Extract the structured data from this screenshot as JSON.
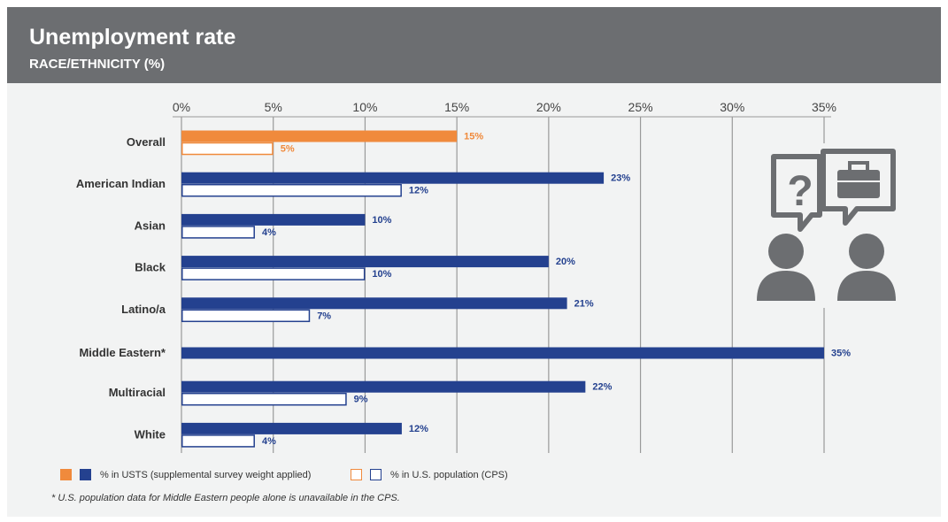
{
  "header": {
    "title": "Unemployment rate",
    "subtitle": "RACE/ETHNICITY (%)"
  },
  "legend": {
    "usts_label": "% in USTS (supplemental survey weight applied)",
    "cps_label": "% in U.S. population (CPS)"
  },
  "footnote": "* U.S. population data for Middle Eastern people alone is unavailable in the CPS.",
  "icon": "conversation-question-briefcase-icon",
  "colors": {
    "header_bg": "#6c6e71",
    "panel_bg": "#f2f3f3",
    "usts": "#24418f",
    "highlight": "#f08a3c",
    "grid": "#999999",
    "icon": "#6c6e71"
  },
  "chart_data": {
    "type": "bar",
    "orientation": "horizontal",
    "title": "Unemployment rate",
    "subtitle": "RACE/ETHNICITY (%)",
    "categories": [
      "Overall",
      "American Indian",
      "Asian",
      "Black",
      "Latino/a",
      "Middle Eastern*",
      "Multiracial",
      "White"
    ],
    "series": [
      {
        "name": "% in USTS (supplemental survey weight applied)",
        "values": [
          15,
          23,
          10,
          20,
          21,
          35,
          22,
          12
        ],
        "labels": [
          "15%",
          "23%",
          "10%",
          "20%",
          "21%",
          "35%",
          "22%",
          "12%"
        ]
      },
      {
        "name": "% in U.S. population (CPS)",
        "values": [
          5,
          12,
          4,
          10,
          7,
          null,
          9,
          4
        ],
        "labels": [
          "5%",
          "12%",
          "4%",
          "10%",
          "7%",
          null,
          "9%",
          "4%"
        ]
      }
    ],
    "xlim": [
      0,
      35
    ],
    "xticks": [
      "0%",
      "5%",
      "10%",
      "15%",
      "20%",
      "25%",
      "30%",
      "35%"
    ],
    "xtick_values": [
      0,
      5,
      10,
      15,
      20,
      25,
      30,
      35
    ],
    "highlight_category": "Overall",
    "grid": true,
    "legend_position": "bottom-left"
  }
}
